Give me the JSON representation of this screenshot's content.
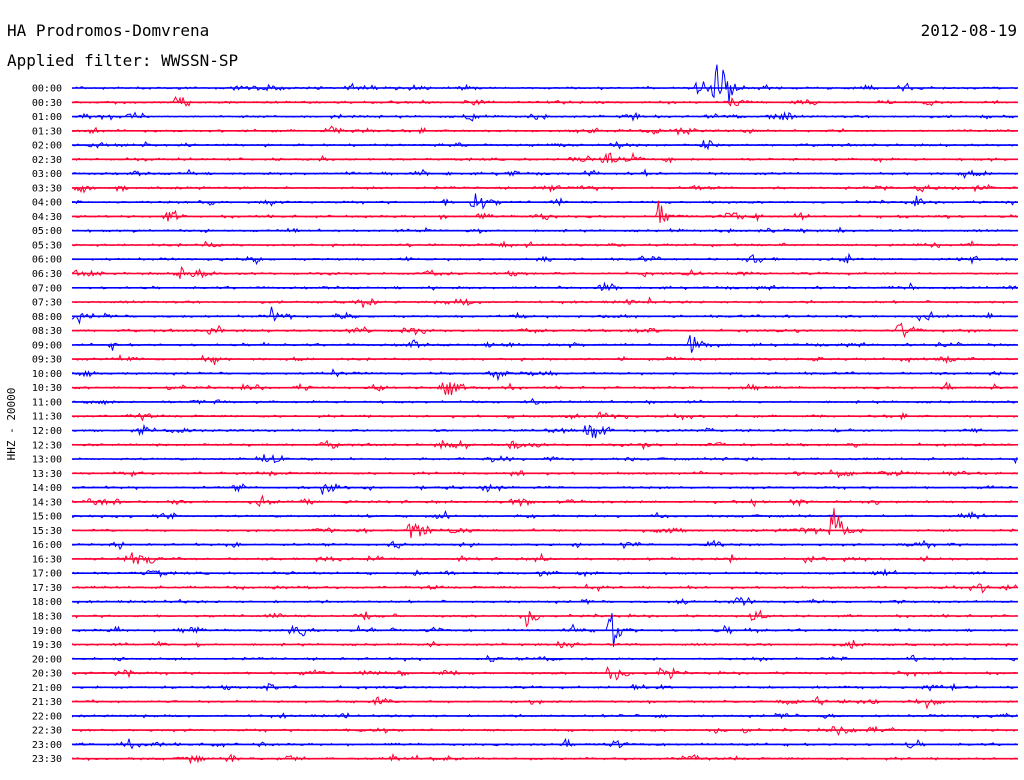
{
  "header": {
    "station": "HA Prodromos-Domvrena",
    "date": "2012-08-19",
    "filter": "Applied filter: WWSSN-SP"
  },
  "colors": {
    "background": "#ffffff",
    "text": "#000000",
    "trace_a": "#0000ff",
    "trace_b": "#ff0033"
  },
  "chart_data": {
    "type": "line",
    "title": "HA Prodromos-Domvrena",
    "subtitle": "Applied filter: WWSSN-SP",
    "ylabel": "HHZ - 20000",
    "xlabel": "",
    "grid": false,
    "legend": "none",
    "y_tick_labels": [
      "00:00",
      "00:30",
      "01:00",
      "01:30",
      "02:00",
      "02:30",
      "03:00",
      "03:30",
      "04:00",
      "04:30",
      "05:00",
      "05:30",
      "06:00",
      "06:30",
      "07:00",
      "07:30",
      "08:00",
      "08:30",
      "09:00",
      "09:30",
      "10:00",
      "10:30",
      "11:00",
      "11:30",
      "12:00",
      "12:30",
      "13:00",
      "13:30",
      "14:00",
      "14:30",
      "15:00",
      "15:30",
      "16:00",
      "16:30",
      "17:00",
      "17:30",
      "18:00",
      "18:30",
      "19:00",
      "19:30",
      "20:00",
      "20:30",
      "21:00",
      "21:30",
      "22:00",
      "22:30",
      "23:00",
      "23:30"
    ],
    "trace_colors_alternating": [
      "#0000ff",
      "#ff0033"
    ],
    "x_range_minutes": [
      0,
      30
    ],
    "events": [
      {
        "row": "00:00",
        "minute": 20.4,
        "amplitude": 6.0
      },
      {
        "row": "00:00",
        "minute": 19.8,
        "amplitude": 1.4
      },
      {
        "row": "00:30",
        "minute": 3.3,
        "amplitude": 1.0
      },
      {
        "row": "01:00",
        "minute": 12.5,
        "amplitude": 0.8
      },
      {
        "row": "02:00",
        "minute": 20.0,
        "amplitude": 1.0
      },
      {
        "row": "02:30",
        "minute": 16.8,
        "amplitude": 1.2
      },
      {
        "row": "03:30",
        "minute": 26.8,
        "amplitude": 0.7
      },
      {
        "row": "04:00",
        "minute": 12.7,
        "amplitude": 2.2
      },
      {
        "row": "04:30",
        "minute": 18.6,
        "amplitude": 1.2
      },
      {
        "row": "06:30",
        "minute": 3.4,
        "amplitude": 1.1
      },
      {
        "row": "08:00",
        "minute": 6.3,
        "amplitude": 0.8
      },
      {
        "row": "08:30",
        "minute": 26.2,
        "amplitude": 1.0
      },
      {
        "row": "09:00",
        "minute": 19.6,
        "amplitude": 1.0
      },
      {
        "row": "10:30",
        "minute": 11.7,
        "amplitude": 2.2
      },
      {
        "row": "12:00",
        "minute": 16.3,
        "amplitude": 1.3
      },
      {
        "row": "12:30",
        "minute": 13.9,
        "amplitude": 1.1
      },
      {
        "row": "14:00",
        "minute": 7.9,
        "amplitude": 1.3
      },
      {
        "row": "15:30",
        "minute": 10.7,
        "amplitude": 1.1
      },
      {
        "row": "15:30",
        "minute": 24.1,
        "amplitude": 4.5
      },
      {
        "row": "18:30",
        "minute": 14.3,
        "amplitude": 2.0
      },
      {
        "row": "19:00",
        "minute": 17.0,
        "amplitude": 3.2
      },
      {
        "row": "20:30",
        "minute": 17.0,
        "amplitude": 1.5
      }
    ]
  }
}
